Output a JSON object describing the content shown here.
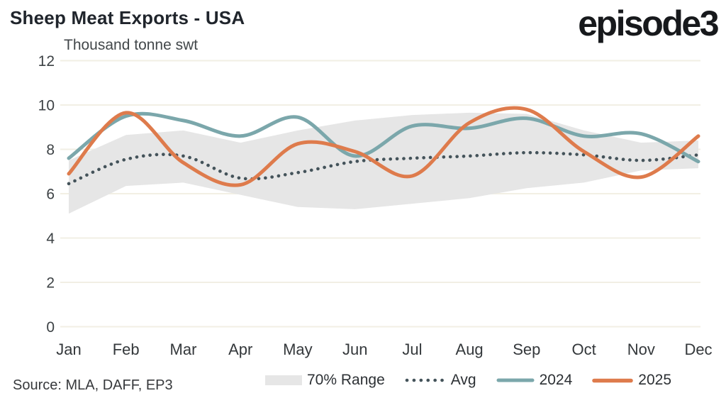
{
  "header": {
    "title": "Sheep Meat Exports - USA",
    "subtitle": "Thousand tonne swt",
    "logo": "episode3"
  },
  "footer": {
    "source": "Source: MLA, DAFF, EP3"
  },
  "colors": {
    "background": "#ffffff",
    "gridline": "#f2efe4",
    "band_fill": "#e6e6e6",
    "avg_dots": "#44535a",
    "line_2024": "#7ba7ab",
    "line_2025": "#de7b4c",
    "text_dark": "#20252c",
    "text_axis": "#3d4245"
  },
  "chart_data": {
    "type": "line",
    "title": "Sheep Meat Exports - USA",
    "ylabel": "Thousand tonne swt",
    "xlabel": "",
    "categories": [
      "Jan",
      "Feb",
      "Mar",
      "Apr",
      "May",
      "Jun",
      "Jul",
      "Aug",
      "Sep",
      "Oct",
      "Nov",
      "Dec"
    ],
    "ylim": [
      0,
      12
    ],
    "yticks": [
      0,
      2,
      4,
      6,
      8,
      10,
      12
    ],
    "grid": "horizontal",
    "legend_position": "bottom",
    "band": {
      "name": "70% Range",
      "color": "#e6e6e6",
      "top": [
        7.5,
        8.65,
        8.85,
        8.3,
        8.85,
        9.3,
        9.55,
        9.65,
        9.6,
        8.85,
        8.3,
        8.4
      ],
      "bottom": [
        5.1,
        6.35,
        6.5,
        5.95,
        5.4,
        5.3,
        5.55,
        5.8,
        6.25,
        6.5,
        7.05,
        7.15
      ]
    },
    "series": [
      {
        "name": "Avg",
        "style": "dotted",
        "color": "#44535a",
        "values": [
          6.45,
          7.55,
          7.7,
          6.7,
          6.95,
          7.45,
          7.6,
          7.7,
          7.85,
          7.75,
          7.5,
          7.75
        ]
      },
      {
        "name": "2024",
        "style": "solid",
        "color": "#7ba7ab",
        "values": [
          7.6,
          9.5,
          9.3,
          8.6,
          9.45,
          7.7,
          9.05,
          8.95,
          9.4,
          8.6,
          8.7,
          7.45
        ]
      },
      {
        "name": "2025",
        "style": "solid",
        "color": "#de7b4c",
        "values": [
          6.9,
          9.65,
          7.4,
          6.4,
          8.25,
          7.9,
          6.8,
          9.2,
          9.8,
          7.9,
          6.75,
          8.6
        ]
      }
    ]
  }
}
